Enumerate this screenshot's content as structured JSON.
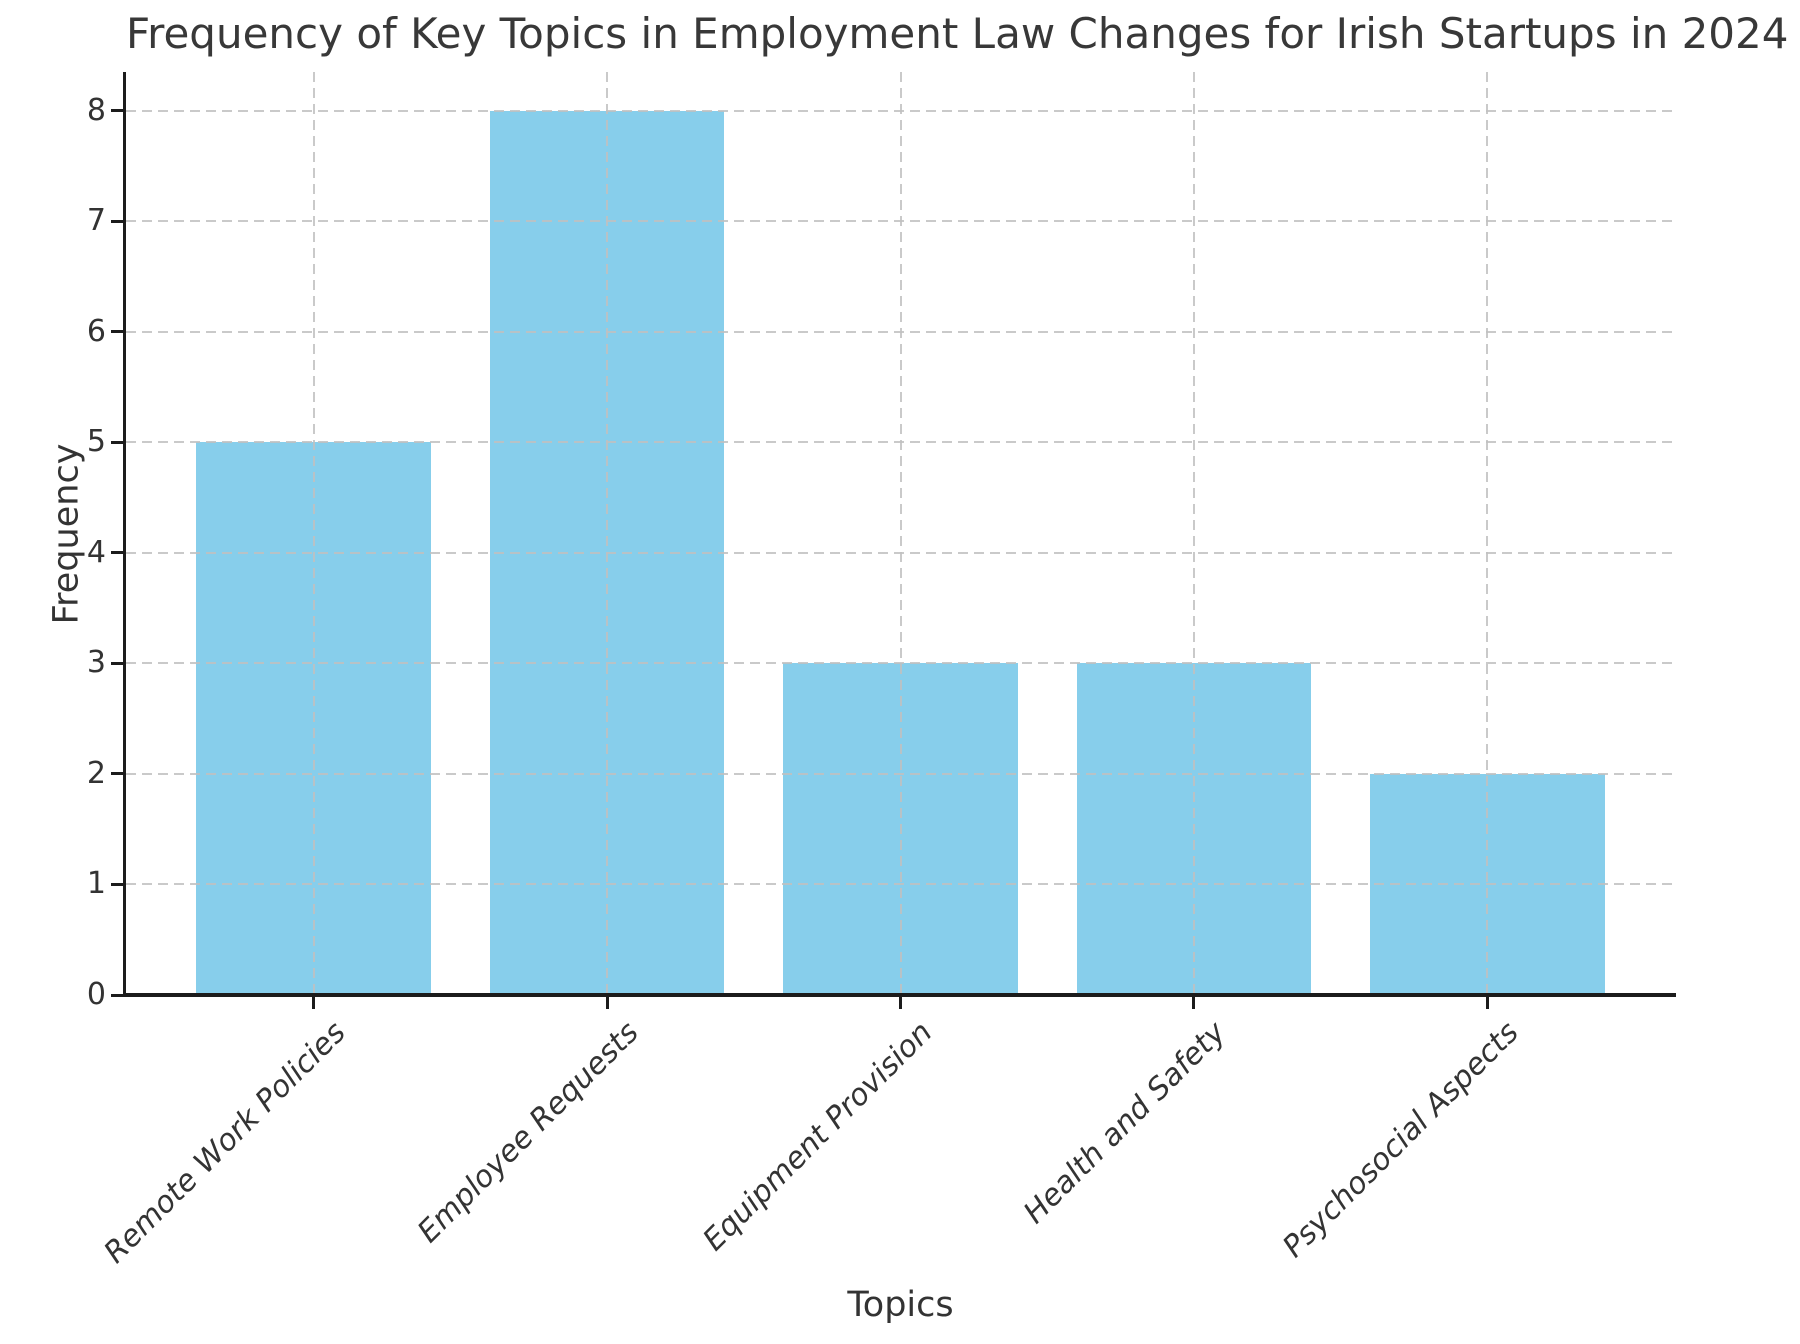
{
  "chart_data": {
    "type": "bar",
    "title": "Frequency of Key Topics in Employment Law Changes for Irish Startups in 2024",
    "xlabel": "Topics",
    "ylabel": "Frequency",
    "categories": [
      "Remote Work Policies",
      "Employee Requests",
      "Equipment Provision",
      "Health and Safety",
      "Psychosocial Aspects"
    ],
    "values": [
      5,
      8,
      3,
      3,
      2
    ],
    "yticks": [
      0,
      1,
      2,
      3,
      4,
      5,
      6,
      7,
      8
    ],
    "ylim": [
      0,
      8.35
    ],
    "xlim": [
      -0.64,
      4.64
    ],
    "bar_width_fraction": 0.8,
    "bar_color": "#87CEEB",
    "grid": "dashed",
    "grid_color": "#c0c0c0",
    "spine_color": "#1c1c1c",
    "text_color": "#333333",
    "background_color": "#ffffff",
    "legend_position": "none",
    "xtick_rotation_deg": 45,
    "xtick_style": "italic"
  }
}
